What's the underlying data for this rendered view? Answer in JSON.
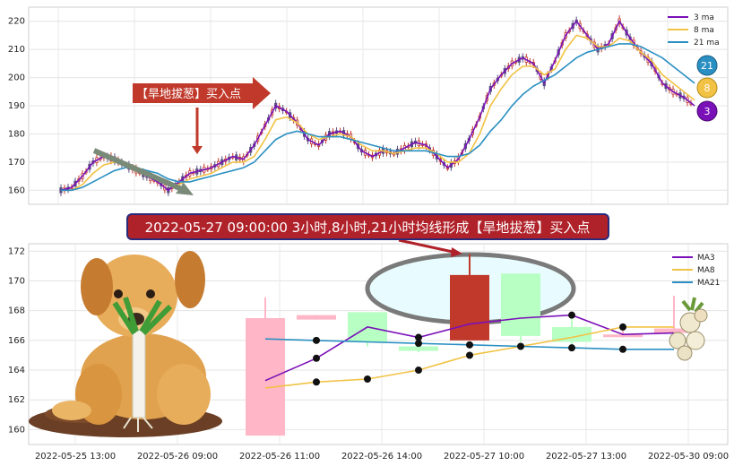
{
  "colors": {
    "ma3": "#7a10b8",
    "ma8": "#f2c244",
    "ma21": "#2a8fc2",
    "up_candle": "#c0392b",
    "down_candle": "#5a4e80",
    "up_body_light": "#ffb6c6",
    "down_body_light": "#b8ffc4",
    "banner_bg": "#b0222a",
    "banner_border": "#2a2a7a",
    "ellipse_fill": "#e8fcff",
    "ellipse_stroke": "#7a7a7a",
    "arrow_grey": "#7a8a78"
  },
  "annotations": {
    "top_arrow_label": "【旱地拔葱】买入点",
    "banner_label": "2022-05-27 09:00:00 3小时,8小时,21小时均线形成【旱地拔葱】买入点",
    "badge_21": "21",
    "badge_8": "8",
    "badge_3": "3"
  },
  "chart_data": [
    {
      "type": "line",
      "panel": "top",
      "title": "",
      "ylim": [
        155,
        225
      ],
      "yticks": [
        160,
        170,
        180,
        190,
        200,
        210,
        220
      ],
      "ytick_labels": [
        "160",
        "170",
        "180",
        "190",
        "200",
        "210",
        "220"
      ],
      "grid": true,
      "legend_position": "top-right",
      "legend": [
        "3 ma",
        "8 ma",
        "21 ma"
      ],
      "series": [
        {
          "name": "3 ma",
          "values": [
            160,
            161,
            165,
            170,
            172,
            171,
            169,
            167,
            165,
            163,
            160,
            163,
            166,
            167,
            168,
            170,
            172,
            171,
            176,
            183,
            190,
            188,
            184,
            178,
            176,
            180,
            181,
            179,
            174,
            172,
            174,
            173,
            175,
            177,
            176,
            172,
            168,
            171,
            178,
            186,
            196,
            201,
            205,
            207,
            205,
            198,
            206,
            215,
            220,
            215,
            210,
            212,
            220,
            214,
            209,
            205,
            198,
            195,
            193,
            190
          ]
        },
        {
          "name": "8 ma",
          "values": [
            160,
            160,
            162,
            166,
            169,
            170,
            169,
            168,
            166,
            164,
            162,
            162,
            164,
            165,
            166,
            168,
            170,
            170,
            172,
            178,
            185,
            186,
            184,
            180,
            178,
            179,
            180,
            179,
            176,
            174,
            174,
            173,
            174,
            175,
            175,
            173,
            170,
            170,
            173,
            180,
            190,
            196,
            201,
            204,
            204,
            201,
            203,
            210,
            215,
            214,
            211,
            211,
            214,
            213,
            209,
            206,
            201,
            198,
            195,
            192
          ]
        },
        {
          "name": "21 ma",
          "values": [
            160,
            160,
            161,
            163,
            165,
            167,
            168,
            168,
            167,
            166,
            164,
            163,
            163,
            164,
            165,
            166,
            167,
            168,
            170,
            174,
            178,
            180,
            181,
            180,
            179,
            179,
            179,
            178,
            177,
            176,
            175,
            174,
            174,
            174,
            174,
            173,
            172,
            172,
            173,
            176,
            181,
            185,
            190,
            194,
            197,
            199,
            201,
            204,
            207,
            209,
            210,
            211,
            212,
            212,
            211,
            209,
            207,
            204,
            201,
            198
          ]
        }
      ]
    },
    {
      "type": "bar",
      "panel": "bottom",
      "title": "",
      "ylim": [
        159,
        172.5
      ],
      "yticks": [
        160,
        162,
        164,
        166,
        168,
        170,
        172
      ],
      "ytick_labels": [
        "160",
        "162",
        "164",
        "166",
        "168",
        "170",
        "172"
      ],
      "x_tick_labels": [
        "2022-05-25 13:00",
        "2022-05-26 09:00",
        "2022-05-26 11:00",
        "2022-05-26 14:00",
        "2022-05-27 10:00",
        "2022-05-27 13:00",
        "2022-05-30 09:00"
      ],
      "grid": true,
      "legend_position": "top-right",
      "legend": [
        "MA3",
        "MA8",
        "MA21"
      ],
      "candles": [
        {
          "open": 159.6,
          "close": 167.5,
          "high": 168.9,
          "low": 159.6
        },
        {
          "open": 167.4,
          "close": 167.7,
          "high": 167.7,
          "low": 167.4
        },
        {
          "open": 167.9,
          "close": 165.9,
          "high": 167.9,
          "low": 165.6
        },
        {
          "open": 165.6,
          "close": 165.3,
          "high": 165.7,
          "low": 165.2
        },
        {
          "open": 166.0,
          "close": 170.4,
          "high": 171.8,
          "low": 166.0
        },
        {
          "open": 170.5,
          "close": 166.3,
          "high": 170.5,
          "low": 165.9
        },
        {
          "open": 166.9,
          "close": 165.9,
          "high": 167.5,
          "low": 165.6
        },
        {
          "open": 166.3,
          "close": 166.4,
          "high": 167.0,
          "low": 166.2
        },
        {
          "open": 166.5,
          "close": 166.8,
          "high": 169.0,
          "low": 166.4
        }
      ],
      "series": [
        {
          "name": "MA3",
          "values": [
            163.3,
            164.8,
            166.9,
            166.2,
            167.1,
            167.5,
            167.7,
            166.4,
            166.5
          ]
        },
        {
          "name": "MA8",
          "values": [
            162.8,
            163.2,
            163.4,
            164.0,
            165.0,
            165.6,
            166.2,
            166.9,
            166.9
          ]
        },
        {
          "name": "MA21",
          "values": [
            166.1,
            166.0,
            165.9,
            165.8,
            165.7,
            165.6,
            165.5,
            165.4,
            165.4
          ]
        }
      ],
      "markers": [
        {
          "series": "MA3",
          "x": 1
        },
        {
          "series": "MA3",
          "x": 3
        },
        {
          "series": "MA3",
          "x": 6
        },
        {
          "series": "MA8",
          "x": 1
        },
        {
          "series": "MA8",
          "x": 2
        },
        {
          "series": "MA8",
          "x": 3
        },
        {
          "series": "MA8",
          "x": 4
        },
        {
          "series": "MA8",
          "x": 7
        },
        {
          "series": "MA21",
          "x": 1
        },
        {
          "series": "MA21",
          "x": 3
        },
        {
          "series": "MA21",
          "x": 4
        },
        {
          "series": "MA21",
          "x": 5
        },
        {
          "series": "MA21",
          "x": 6
        },
        {
          "series": "MA21",
          "x": 7
        }
      ]
    }
  ]
}
